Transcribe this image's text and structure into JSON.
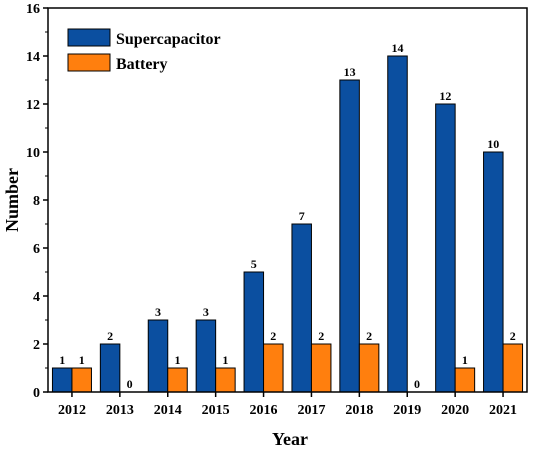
{
  "chart_data": {
    "type": "bar",
    "xlabel": "Year",
    "ylabel": "Number",
    "ylim": [
      0,
      16
    ],
    "yticks": [
      0,
      2,
      4,
      6,
      8,
      10,
      12,
      14,
      16
    ],
    "categories": [
      "2012",
      "2013",
      "2014",
      "2015",
      "2016",
      "2017",
      "2018",
      "2019",
      "2020",
      "2021"
    ],
    "series": [
      {
        "name": "Supercapacitor",
        "color": "#0b4fa0",
        "values": [
          1,
          2,
          3,
          3,
          5,
          7,
          13,
          14,
          12,
          10
        ]
      },
      {
        "name": "Battery",
        "color": "#ff7f0e",
        "values": [
          1,
          0,
          1,
          1,
          2,
          2,
          2,
          0,
          1,
          2
        ]
      }
    ],
    "legend": "top-left",
    "grid": false
  }
}
